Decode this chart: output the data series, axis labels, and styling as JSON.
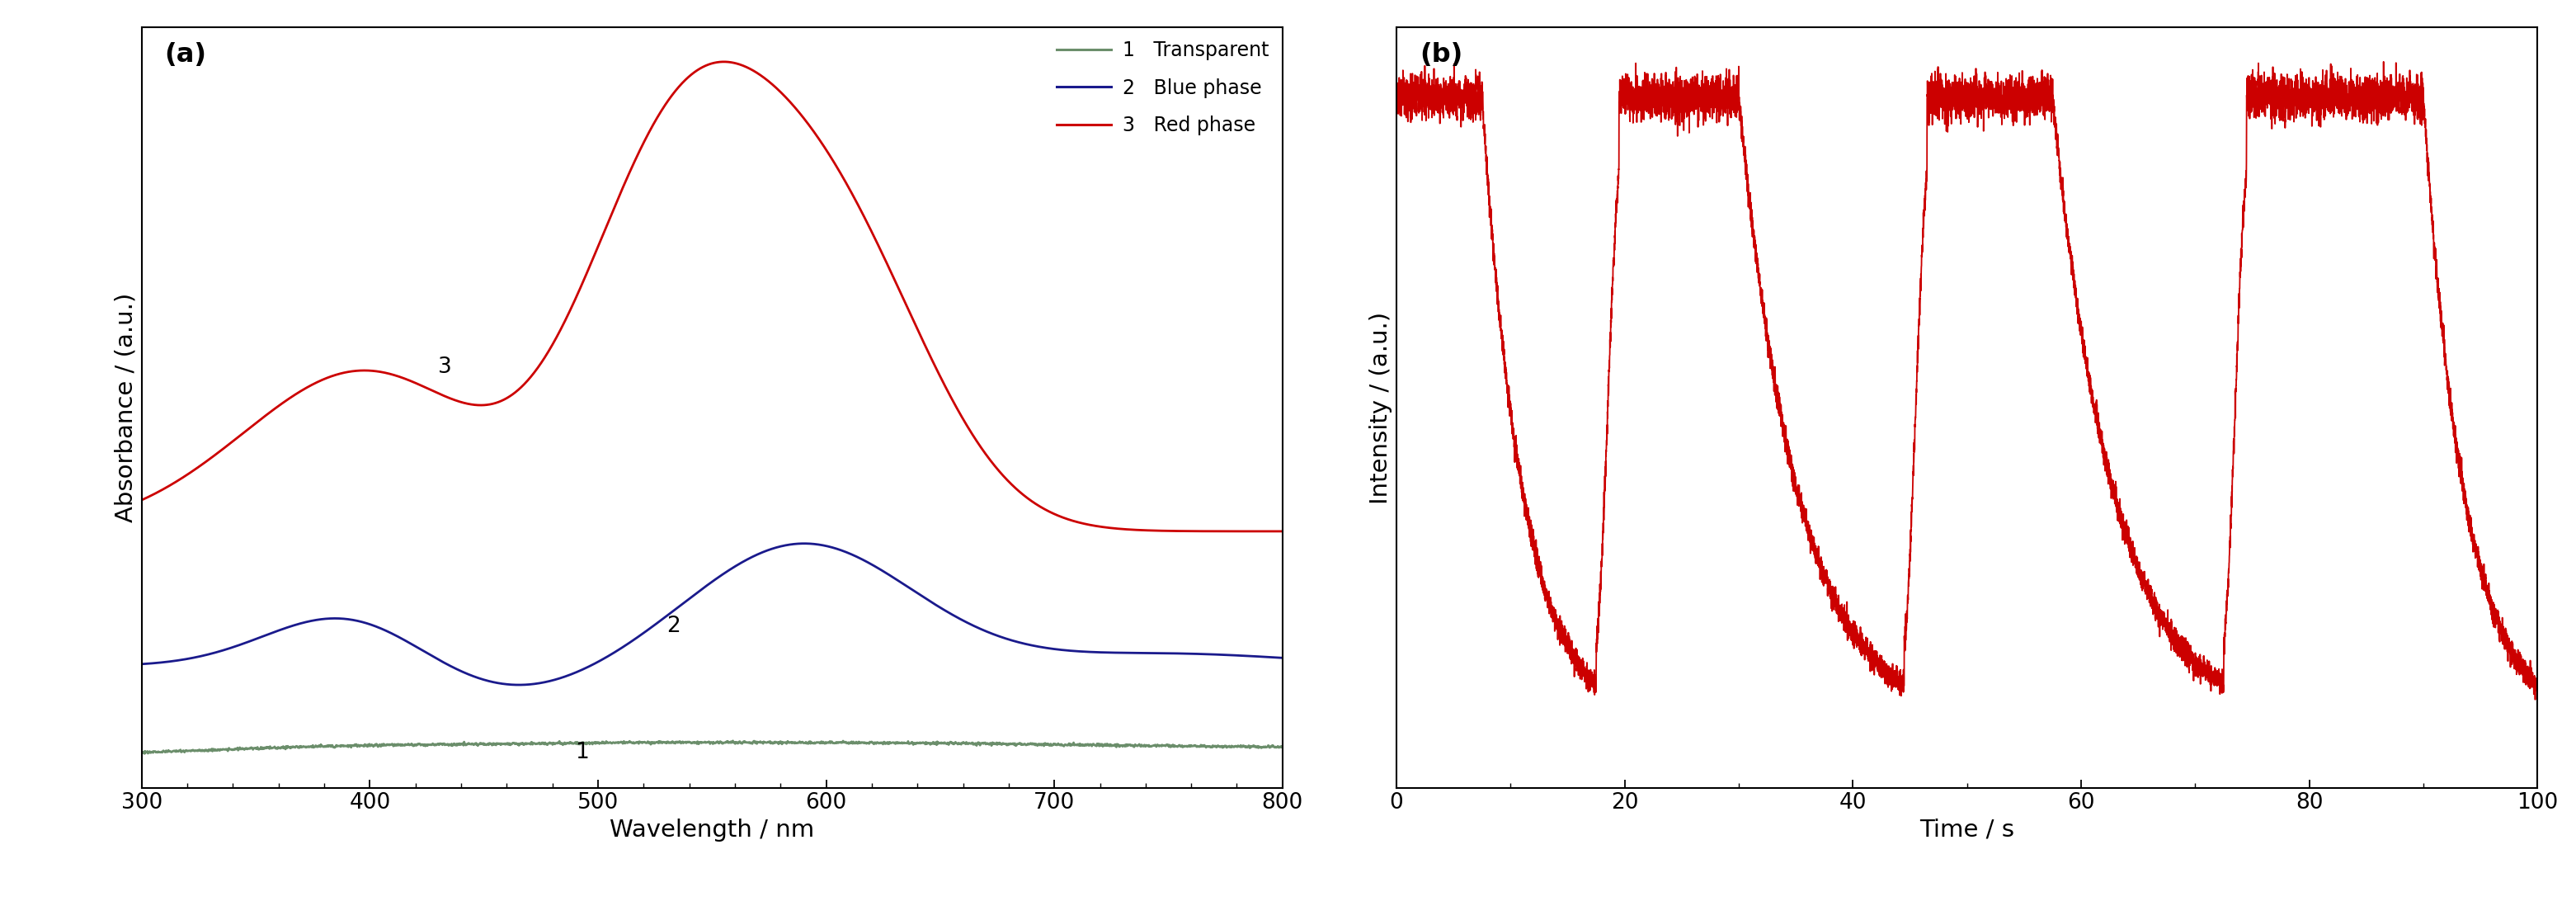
{
  "panel_a": {
    "xlabel": "Wavelength / nm",
    "ylabel": "Absorbance / (a.u.)",
    "label": "(a)",
    "xlim": [
      300,
      800
    ],
    "xticks": [
      300,
      400,
      500,
      600,
      700,
      800
    ],
    "legend": [
      {
        "num": "1",
        "label": "Transparent",
        "color": "#6b8e6b"
      },
      {
        "num": "2",
        "label": "Blue phase",
        "color": "#1a1a8c"
      },
      {
        "num": "3",
        "label": "Red phase",
        "color": "#cc0000"
      }
    ],
    "curve1_label_wl": 490,
    "curve2_label_wl": 530,
    "curve3_label_wl": 430
  },
  "panel_b": {
    "xlabel": "Time / s",
    "ylabel": "Intensity / (a.u.)",
    "label": "(b)",
    "xlim": [
      0,
      100
    ],
    "xticks": [
      0,
      20,
      40,
      60,
      80,
      100
    ],
    "color": "#cc0000",
    "high_val": 0.88,
    "low_val": 0.05,
    "noise_level": 0.008
  }
}
